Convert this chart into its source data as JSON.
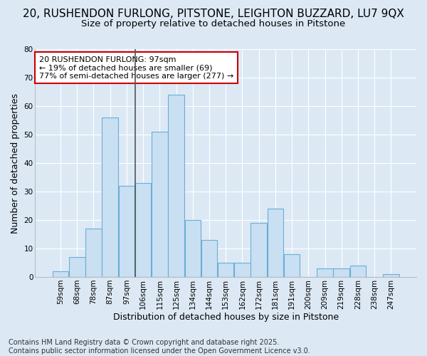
{
  "title_line1": "20, RUSHENDON FURLONG, PITSTONE, LEIGHTON BUZZARD, LU7 9QX",
  "title_line2": "Size of property relative to detached houses in Pitstone",
  "xlabel": "Distribution of detached houses by size in Pitstone",
  "ylabel": "Number of detached properties",
  "bin_labels": [
    "59sqm",
    "68sqm",
    "78sqm",
    "87sqm",
    "97sqm",
    "106sqm",
    "115sqm",
    "125sqm",
    "134sqm",
    "144sqm",
    "153sqm",
    "162sqm",
    "172sqm",
    "181sqm",
    "191sqm",
    "200sqm",
    "209sqm",
    "219sqm",
    "228sqm",
    "238sqm",
    "247sqm"
  ],
  "bar_values": [
    2,
    7,
    17,
    56,
    32,
    33,
    51,
    64,
    20,
    13,
    5,
    5,
    19,
    24,
    8,
    0,
    3,
    3,
    4,
    0,
    1
  ],
  "bar_color": "#c9dff2",
  "bar_edge_color": "#6aaed6",
  "highlight_bar_index": 4,
  "highlight_line_color": "#555555",
  "ylim": [
    0,
    80
  ],
  "yticks": [
    0,
    10,
    20,
    30,
    40,
    50,
    60,
    70,
    80
  ],
  "annotation_text": "20 RUSHENDON FURLONG: 97sqm\n← 19% of detached houses are smaller (69)\n77% of semi-detached houses are larger (277) →",
  "annotation_box_facecolor": "#ffffff",
  "annotation_box_edgecolor": "#cc0000",
  "footer_line1": "Contains HM Land Registry data © Crown copyright and database right 2025.",
  "footer_line2": "Contains public sector information licensed under the Open Government Licence v3.0.",
  "background_color": "#dce9f5",
  "plot_background_color": "#dce9f5",
  "grid_color": "#ffffff",
  "title1_fontsize": 11,
  "title2_fontsize": 9.5,
  "axis_label_fontsize": 9,
  "tick_fontsize": 7.5,
  "footer_fontsize": 7,
  "annotation_fontsize": 8
}
